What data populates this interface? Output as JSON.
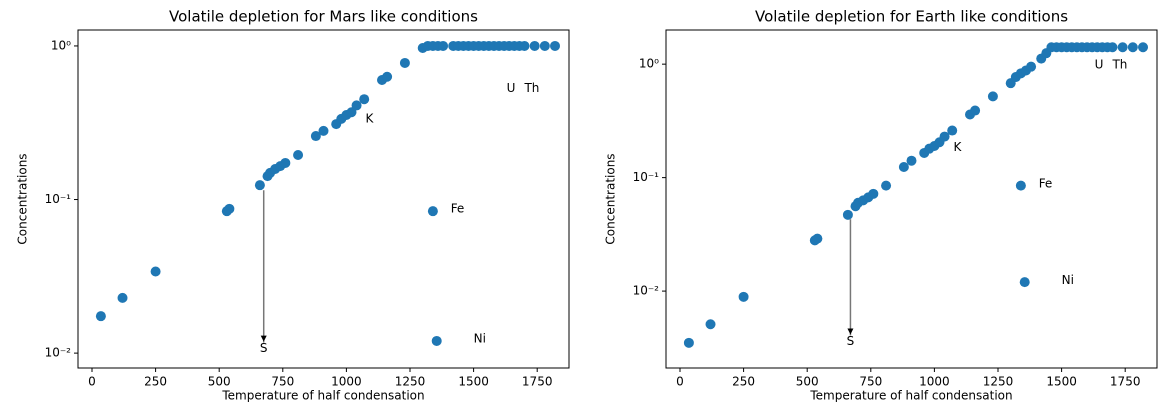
{
  "chart_data": [
    {
      "type": "scatter",
      "title": "Volatile depletion for Mars like conditions",
      "x_label": "Temperature of half condensation",
      "y_label": "Concentrations",
      "color": "#1f77b4",
      "log_y": true,
      "xlim": [
        -55,
        1875
      ],
      "ylim": [
        0.008,
        1.27
      ],
      "xticks": [
        0,
        250,
        500,
        750,
        1000,
        1250,
        1500,
        1750
      ],
      "yticks": [
        {
          "value": 0.01,
          "label": "10⁻²"
        },
        {
          "value": 0.1,
          "label": "10⁻¹"
        },
        {
          "value": 1,
          "label": "10⁰"
        }
      ],
      "x": [
        35,
        120,
        250,
        530,
        540,
        660,
        690,
        700,
        720,
        740,
        760,
        810,
        880,
        910,
        960,
        980,
        1000,
        1020,
        1040,
        1070,
        1140,
        1160,
        1230,
        1300,
        1320,
        1340,
        1360,
        1380,
        1420,
        1440,
        1460,
        1480,
        1500,
        1520,
        1540,
        1560,
        1580,
        1600,
        1620,
        1640,
        1660,
        1680,
        1700,
        1740,
        1780,
        1820,
        1340,
        1355
      ],
      "values": [
        0.0174,
        0.0229,
        0.034,
        0.084,
        0.087,
        0.124,
        0.142,
        0.149,
        0.158,
        0.165,
        0.173,
        0.195,
        0.259,
        0.28,
        0.31,
        0.335,
        0.355,
        0.37,
        0.41,
        0.45,
        0.6,
        0.63,
        0.775,
        0.97,
        1,
        1,
        1,
        1,
        1,
        1,
        1,
        1,
        1,
        1,
        1,
        1,
        1,
        1,
        1,
        1,
        1,
        1,
        1,
        1,
        1,
        1,
        0.084,
        0.012
      ],
      "annotations": [
        {
          "text": "S",
          "x": 675,
          "y": 0.0107,
          "arrow_from": [
            675,
            0.115
          ]
        },
        {
          "text": "K",
          "x": 1075,
          "y": 0.335
        },
        {
          "text": "Fe",
          "x": 1410,
          "y": 0.087
        },
        {
          "text": "Ni",
          "x": 1500,
          "y": 0.0124
        },
        {
          "text": "U",
          "x": 1630,
          "y": 0.53
        },
        {
          "text": "Th",
          "x": 1700,
          "y": 0.53
        }
      ]
    },
    {
      "type": "scatter",
      "title": "Volatile depletion for Earth like conditions",
      "x_label": "Temperature of half condensation",
      "y_label": "Concentrations",
      "color": "#1f77b4",
      "log_y": true,
      "xlim": [
        -55,
        1875
      ],
      "ylim": [
        0.0021,
        2.0
      ],
      "xticks": [
        0,
        250,
        500,
        750,
        1000,
        1250,
        1500,
        1750
      ],
      "yticks": [
        {
          "value": 0.01,
          "label": "10⁻²"
        },
        {
          "value": 0.1,
          "label": "10⁻¹"
        },
        {
          "value": 1,
          "label": "10⁰"
        }
      ],
      "x": [
        35,
        120,
        250,
        530,
        540,
        660,
        690,
        700,
        720,
        740,
        760,
        810,
        880,
        910,
        960,
        980,
        1000,
        1020,
        1040,
        1070,
        1140,
        1160,
        1230,
        1300,
        1320,
        1340,
        1360,
        1380,
        1420,
        1440,
        1460,
        1480,
        1500,
        1520,
        1540,
        1560,
        1580,
        1600,
        1620,
        1640,
        1660,
        1680,
        1700,
        1740,
        1780,
        1820,
        1340,
        1355
      ],
      "values": [
        0.0035,
        0.0051,
        0.0089,
        0.028,
        0.029,
        0.047,
        0.056,
        0.06,
        0.063,
        0.067,
        0.072,
        0.085,
        0.124,
        0.141,
        0.165,
        0.18,
        0.19,
        0.205,
        0.23,
        0.26,
        0.36,
        0.39,
        0.52,
        0.68,
        0.77,
        0.83,
        0.88,
        0.95,
        1.12,
        1.25,
        1.41,
        1.41,
        1.41,
        1.41,
        1.41,
        1.41,
        1.41,
        1.41,
        1.41,
        1.41,
        1.41,
        1.41,
        1.41,
        1.41,
        1.41,
        1.41,
        0.085,
        0.012
      ],
      "annotations": [
        {
          "text": "S",
          "x": 670,
          "y": 0.0036,
          "arrow_from": [
            670,
            0.043
          ]
        },
        {
          "text": "K",
          "x": 1075,
          "y": 0.185
        },
        {
          "text": "Fe",
          "x": 1410,
          "y": 0.088
        },
        {
          "text": "Ni",
          "x": 1500,
          "y": 0.0124
        },
        {
          "text": "U",
          "x": 1630,
          "y": 0.98
        },
        {
          "text": "Th",
          "x": 1700,
          "y": 0.98
        }
      ]
    }
  ]
}
